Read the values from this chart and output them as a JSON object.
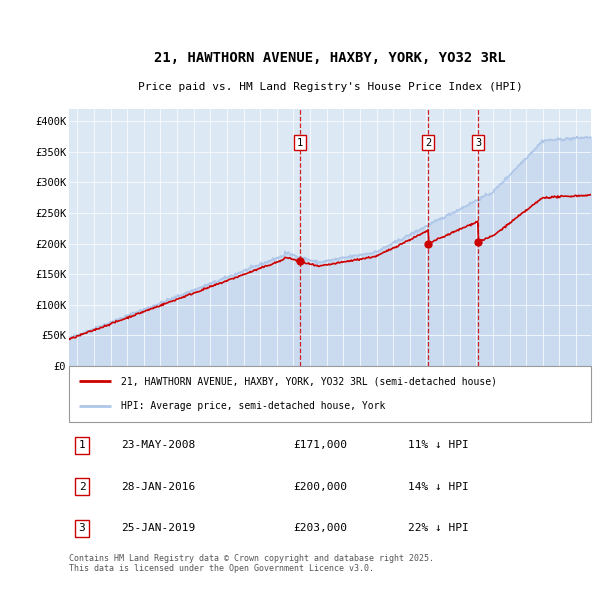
{
  "title": "21, HAWTHORN AVENUE, HAXBY, YORK, YO32 3RL",
  "subtitle": "Price paid vs. HM Land Registry's House Price Index (HPI)",
  "legend_line1": "21, HAWTHORN AVENUE, HAXBY, YORK, YO32 3RL (semi-detached house)",
  "legend_line2": "HPI: Average price, semi-detached house, York",
  "footer": "Contains HM Land Registry data © Crown copyright and database right 2025.\nThis data is licensed under the Open Government Licence v3.0.",
  "transactions": [
    {
      "num": 1,
      "date": "23-MAY-2008",
      "price": 171000,
      "hpi_pct": "11% ↓ HPI",
      "year": 2008.4
    },
    {
      "num": 2,
      "date": "28-JAN-2016",
      "price": 200000,
      "hpi_pct": "14% ↓ HPI",
      "year": 2016.1
    },
    {
      "num": 3,
      "date": "25-JAN-2019",
      "price": 203000,
      "hpi_pct": "22% ↓ HPI",
      "year": 2019.1
    }
  ],
  "hpi_color": "#aec6e8",
  "hpi_fill_color": "#c8daf0",
  "price_color": "#cc0000",
  "vline_color": "#cc0000",
  "dot_color": "#cc0000",
  "background_chart": "#dce9f5",
  "background_fig": "#ffffff",
  "ylim": [
    0,
    420000
  ],
  "xlim_start": 1994.5,
  "xlim_end": 2025.9,
  "yticks": [
    0,
    50000,
    100000,
    150000,
    200000,
    250000,
    300000,
    350000,
    400000
  ],
  "ytick_labels": [
    "£0",
    "£50K",
    "£100K",
    "£150K",
    "£200K",
    "£250K",
    "£300K",
    "£350K",
    "£400K"
  ],
  "xticks": [
    1995,
    1996,
    1997,
    1998,
    1999,
    2000,
    2001,
    2002,
    2003,
    2004,
    2005,
    2006,
    2007,
    2008,
    2009,
    2010,
    2011,
    2012,
    2013,
    2014,
    2015,
    2016,
    2017,
    2018,
    2019,
    2020,
    2021,
    2022,
    2023,
    2024,
    2025
  ]
}
